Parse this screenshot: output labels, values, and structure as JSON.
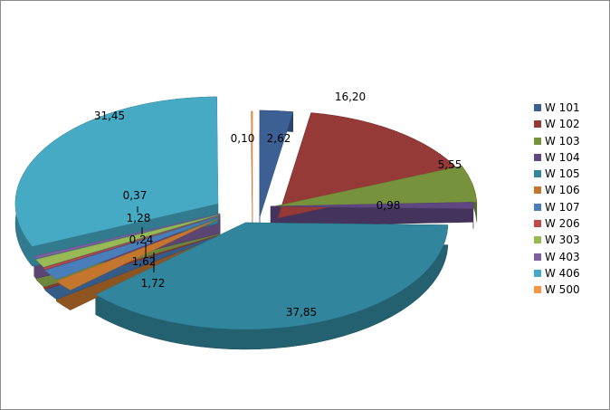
{
  "chart_data": {
    "type": "pie",
    "variant": "3d-exploded",
    "legend_position": "right",
    "categories": [
      "W 101",
      "W 102",
      "W 103",
      "W 104",
      "W 105",
      "W 106",
      "W 107",
      "W 206",
      "W 303",
      "W 403",
      "W 406",
      "W 500"
    ],
    "values": [
      2.62,
      16.2,
      5.55,
      0.98,
      37.85,
      1.72,
      1.62,
      0.24,
      1.28,
      0.37,
      31.45,
      0.1
    ],
    "labels": [
      "2,62",
      "16,20",
      "5,55",
      "0,98",
      "37,85",
      "1,72",
      "1,62",
      "0,24",
      "1,28",
      "0,37",
      "31,45",
      "0,10"
    ],
    "colors": [
      "#3c5f94",
      "#953a37",
      "#76923c",
      "#5f4881",
      "#31859c",
      "#c5762e",
      "#4a7ebb",
      "#be4b48",
      "#98b954",
      "#7d60a0",
      "#46aac5",
      "#f79646"
    ]
  }
}
